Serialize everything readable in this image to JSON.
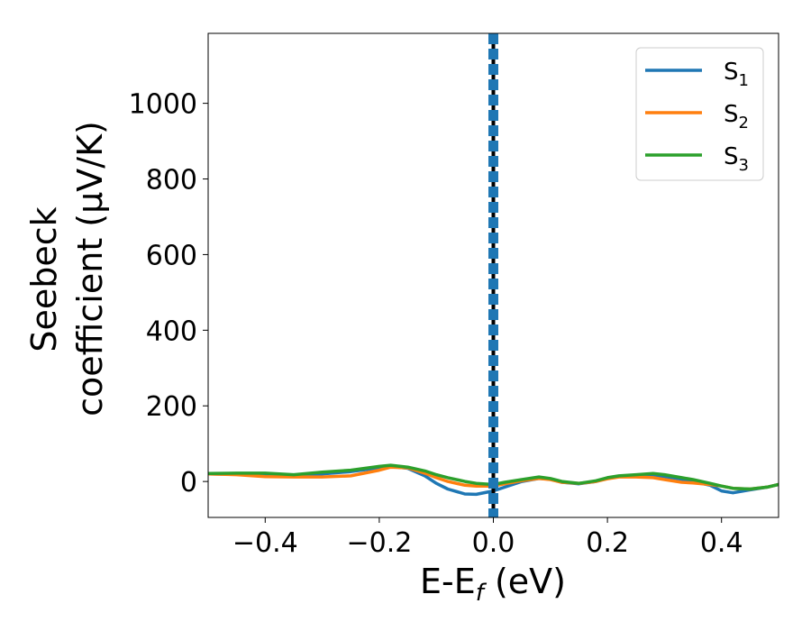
{
  "chart_data": {
    "type": "line",
    "xlabel_main": "E-E",
    "xlabel_sub": "f",
    "xlabel_unit": " (eV)",
    "ylabel_line1": "Seebeck",
    "ylabel_line2": "coefficient  (μV/K)",
    "xlim": [
      -0.5,
      0.5
    ],
    "ylim": [
      -95,
      1185
    ],
    "xticks": [
      -0.4,
      -0.2,
      0.0,
      0.2,
      0.4
    ],
    "xtick_labels": [
      "−0.4",
      "−0.2",
      "0.0",
      "0.2",
      "0.4"
    ],
    "yticks": [
      0,
      200,
      400,
      600,
      800,
      1000
    ],
    "ytick_labels": [
      "0",
      "200",
      "400",
      "600",
      "800",
      "1000"
    ],
    "legend_position": "top-right",
    "vline": {
      "x": 0.0,
      "style": "dashed",
      "colors": [
        "#000000",
        "#1f77b4"
      ]
    },
    "series": [
      {
        "name": "S",
        "sub": "1",
        "color": "#1f77b4",
        "x": [
          -0.5,
          -0.45,
          -0.4,
          -0.35,
          -0.3,
          -0.25,
          -0.2,
          -0.18,
          -0.15,
          -0.12,
          -0.1,
          -0.08,
          -0.05,
          -0.03,
          0.0,
          0.02,
          0.05,
          0.08,
          0.1,
          0.12,
          0.15,
          0.18,
          0.2,
          0.22,
          0.25,
          0.28,
          0.3,
          0.33,
          0.35,
          0.38,
          0.4,
          0.42,
          0.45,
          0.48,
          0.5
        ],
        "y": [
          20,
          19,
          17,
          16,
          20,
          26,
          36,
          40,
          35,
          15,
          -5,
          -20,
          -33,
          -34,
          -25,
          -15,
          0,
          8,
          6,
          -2,
          -6,
          0,
          8,
          14,
          16,
          18,
          13,
          6,
          0,
          -10,
          -25,
          -30,
          -22,
          -15,
          -8
        ]
      },
      {
        "name": "S",
        "sub": "2",
        "color": "#ff7f0e",
        "x": [
          -0.5,
          -0.45,
          -0.4,
          -0.35,
          -0.3,
          -0.25,
          -0.2,
          -0.18,
          -0.15,
          -0.12,
          -0.1,
          -0.08,
          -0.05,
          -0.03,
          0.0,
          0.02,
          0.05,
          0.08,
          0.1,
          0.12,
          0.15,
          0.18,
          0.2,
          0.22,
          0.25,
          0.28,
          0.3,
          0.33,
          0.35,
          0.38,
          0.4,
          0.42,
          0.45,
          0.48,
          0.5
        ],
        "y": [
          20,
          18,
          13,
          12,
          12,
          15,
          30,
          38,
          36,
          22,
          10,
          0,
          -10,
          -12,
          -12,
          -6,
          2,
          8,
          5,
          -2,
          -5,
          0,
          7,
          12,
          12,
          10,
          5,
          -2,
          -4,
          -8,
          -12,
          -18,
          -20,
          -15,
          -8
        ]
      },
      {
        "name": "S",
        "sub": "3",
        "color": "#2ca02c",
        "x": [
          -0.5,
          -0.45,
          -0.4,
          -0.35,
          -0.3,
          -0.25,
          -0.2,
          -0.18,
          -0.15,
          -0.12,
          -0.1,
          -0.08,
          -0.05,
          -0.03,
          0.0,
          0.02,
          0.05,
          0.08,
          0.1,
          0.12,
          0.15,
          0.18,
          0.2,
          0.22,
          0.25,
          0.28,
          0.3,
          0.33,
          0.35,
          0.38,
          0.4,
          0.42,
          0.45,
          0.48,
          0.5
        ],
        "y": [
          21,
          22,
          22,
          18,
          25,
          30,
          40,
          43,
          38,
          28,
          18,
          10,
          0,
          -5,
          -8,
          -2,
          5,
          12,
          8,
          0,
          -5,
          2,
          10,
          15,
          18,
          21,
          18,
          10,
          5,
          -5,
          -12,
          -18,
          -20,
          -15,
          -8
        ]
      }
    ]
  }
}
